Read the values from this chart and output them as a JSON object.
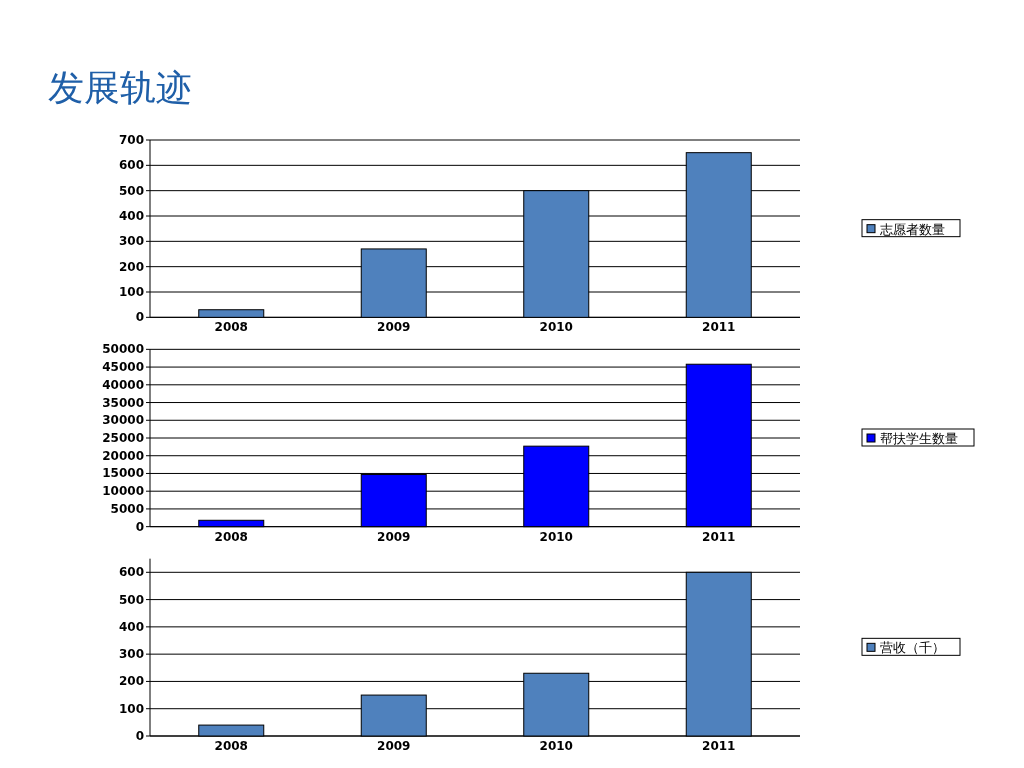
{
  "chart_data": [
    {
      "type": "bar",
      "title": "发展轨迹",
      "categories": [
        "2008",
        "2009",
        "2010",
        "2011"
      ],
      "series": [
        {
          "name": "志愿者数量",
          "color": "#4f81bd",
          "values": [
            30,
            270,
            500,
            650
          ]
        }
      ],
      "ylim": [
        0,
        700
      ],
      "yticks": [
        0,
        100,
        200,
        300,
        400,
        500,
        600,
        700
      ],
      "grid": "y",
      "legend": "right"
    },
    {
      "type": "bar",
      "categories": [
        "2008",
        "2009",
        "2010",
        "2011"
      ],
      "series": [
        {
          "name": "帮扶学生数量",
          "color": "#0000ff",
          "values": [
            1800,
            14700,
            22700,
            45800
          ]
        }
      ],
      "ylim": [
        0,
        50000
      ],
      "yticks": [
        0,
        5000,
        10000,
        15000,
        20000,
        25000,
        30000,
        35000,
        40000,
        45000,
        50000
      ],
      "grid": "y",
      "legend": "right"
    },
    {
      "type": "bar",
      "categories": [
        "2008",
        "2009",
        "2010",
        "2011"
      ],
      "series": [
        {
          "name": "营收（千）",
          "color": "#4f81bd",
          "values": [
            40,
            150,
            230,
            600
          ]
        }
      ],
      "ylim": [
        0,
        650
      ],
      "yticks": [
        0,
        100,
        200,
        300,
        400,
        500,
        600
      ],
      "grid": "y",
      "legend": "right"
    }
  ]
}
